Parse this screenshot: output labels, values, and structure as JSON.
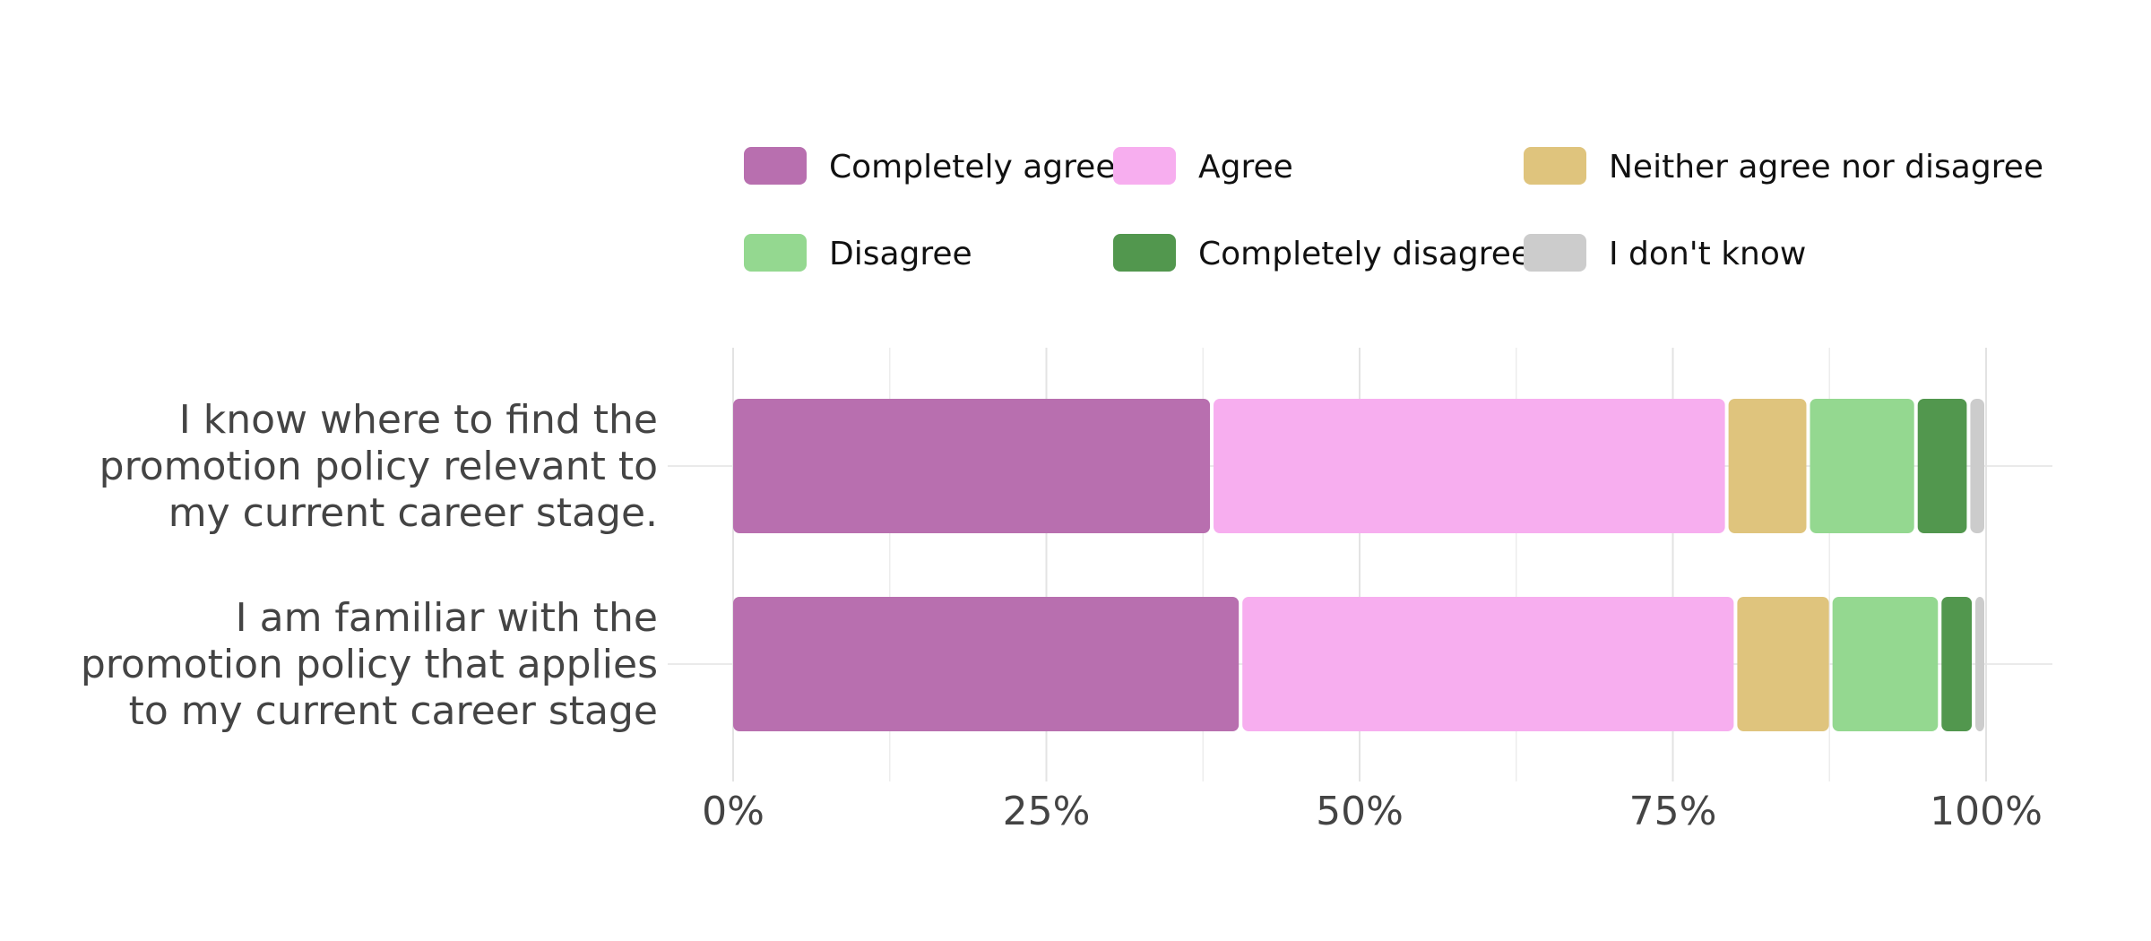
{
  "chart_data": {
    "type": "bar",
    "orientation": "horizontal",
    "stacked": true,
    "normalized": true,
    "categories": [
      "I know where to find the promotion policy relevant to my current career stage.",
      "I am familiar with the promotion policy that applies to my current career stage"
    ],
    "category_lines": [
      [
        "I know where to find the",
        "promotion policy relevant to",
        "my current career stage."
      ],
      [
        "I am familiar with the",
        "promotion policy that applies",
        "to my current career stage"
      ]
    ],
    "series": [
      {
        "name": "Completely agree",
        "color": "#b86faf",
        "values": [
          38.2,
          40.5
        ]
      },
      {
        "name": "Agree",
        "color": "#f7aeef",
        "values": [
          41.1,
          39.5
        ]
      },
      {
        "name": "Neither agree nor disagree",
        "color": "#dfc47d",
        "values": [
          6.5,
          7.6
        ]
      },
      {
        "name": "Disagree",
        "color": "#94d890",
        "values": [
          8.6,
          8.7
        ]
      },
      {
        "name": "Completely disagree",
        "color": "#52974e",
        "values": [
          4.2,
          2.7
        ]
      },
      {
        "name": "I don't know",
        "color": "#cccccc",
        "values": [
          1.4,
          1.0
        ]
      }
    ],
    "xlim": [
      0,
      100
    ],
    "x_ticks": [
      0,
      25,
      50,
      75,
      100
    ],
    "x_tick_labels": [
      "0%",
      "25%",
      "50%",
      "75%",
      "100%"
    ],
    "title": "",
    "xlabel": "",
    "ylabel": "",
    "grid": true,
    "legend_position": "top"
  }
}
